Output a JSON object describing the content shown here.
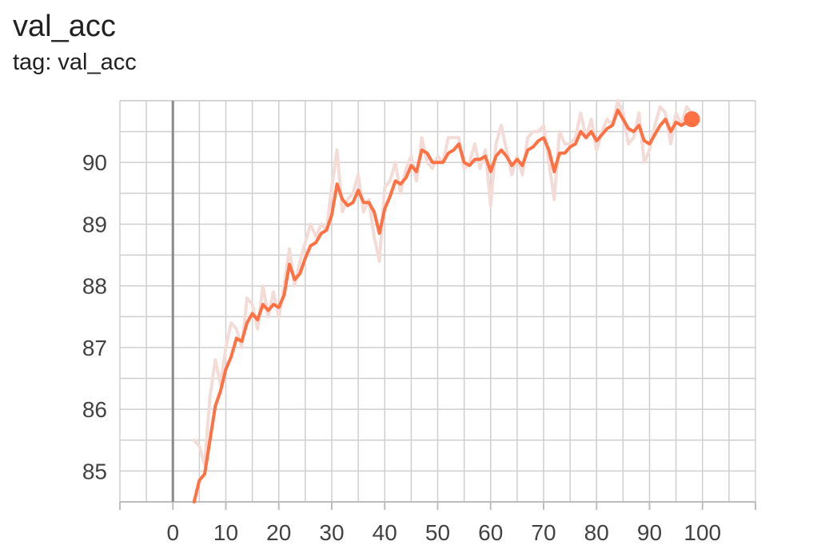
{
  "header": {
    "title": "val_acc",
    "tag": "tag: val_acc"
  },
  "chart_data": {
    "type": "line",
    "title": "val_acc",
    "subtitle": "tag: val_acc",
    "xlabel": "",
    "ylabel": "",
    "xlim": [
      -10,
      110
    ],
    "ylim": [
      84.5,
      91.0
    ],
    "x_ticks": [
      0,
      10,
      20,
      30,
      40,
      50,
      60,
      70,
      80,
      90,
      100
    ],
    "y_ticks": [
      85,
      86,
      87,
      88,
      89,
      90
    ],
    "grid": true,
    "colors": {
      "smoothed": "#ff7043",
      "raw": "#f3dcd8",
      "grid": "#cfcfcf",
      "zero_axis": "#8a8a8a"
    },
    "series": [
      {
        "role": "smoothed",
        "x": [
          4,
          5,
          6,
          7,
          8,
          9,
          10,
          11,
          12,
          13,
          14,
          15,
          16,
          17,
          18,
          19,
          20,
          21,
          22,
          23,
          24,
          25,
          26,
          27,
          28,
          29,
          30,
          31,
          32,
          33,
          34,
          35,
          36,
          37,
          38,
          39,
          40,
          41,
          42,
          43,
          44,
          45,
          46,
          47,
          48,
          49,
          50,
          51,
          52,
          53,
          54,
          55,
          56,
          57,
          58,
          59,
          60,
          61,
          62,
          63,
          64,
          65,
          66,
          67,
          68,
          69,
          70,
          71,
          72,
          73,
          74,
          75,
          76,
          77,
          78,
          79,
          80,
          81,
          82,
          83,
          84,
          85,
          86,
          87,
          88,
          89,
          90,
          91,
          92,
          93,
          94,
          95,
          96,
          97,
          98
        ],
        "y": [
          84.5,
          84.85,
          84.95,
          85.5,
          86.05,
          86.3,
          86.65,
          86.85,
          87.15,
          87.1,
          87.4,
          87.55,
          87.45,
          87.7,
          87.6,
          87.7,
          87.65,
          87.85,
          88.35,
          88.1,
          88.2,
          88.45,
          88.65,
          88.7,
          88.85,
          88.9,
          89.15,
          89.65,
          89.4,
          89.3,
          89.35,
          89.55,
          89.35,
          89.35,
          89.2,
          88.85,
          89.25,
          89.45,
          89.7,
          89.65,
          89.75,
          89.95,
          89.85,
          90.2,
          90.15,
          90.0,
          90.0,
          90.0,
          90.15,
          90.2,
          90.3,
          90.0,
          89.95,
          90.05,
          90.05,
          90.1,
          89.85,
          90.1,
          90.2,
          90.1,
          89.95,
          90.05,
          89.95,
          90.2,
          90.25,
          90.35,
          90.4,
          90.2,
          89.85,
          90.15,
          90.15,
          90.25,
          90.3,
          90.5,
          90.4,
          90.5,
          90.35,
          90.45,
          90.55,
          90.6,
          90.85,
          90.7,
          90.55,
          90.5,
          90.6,
          90.35,
          90.3,
          90.45,
          90.6,
          90.7,
          90.5,
          90.65,
          90.6,
          90.65,
          90.7
        ]
      },
      {
        "role": "raw",
        "x": [
          4,
          5,
          6,
          7,
          8,
          9,
          10,
          11,
          12,
          13,
          14,
          15,
          16,
          17,
          18,
          19,
          20,
          21,
          22,
          23,
          24,
          25,
          26,
          27,
          28,
          29,
          30,
          31,
          32,
          33,
          34,
          35,
          36,
          37,
          38,
          39,
          40,
          41,
          42,
          43,
          44,
          45,
          46,
          47,
          48,
          49,
          50,
          51,
          52,
          53,
          54,
          55,
          56,
          57,
          58,
          59,
          60,
          61,
          62,
          63,
          64,
          65,
          66,
          67,
          68,
          69,
          70,
          71,
          72,
          73,
          74,
          75,
          76,
          77,
          78,
          79,
          80,
          81,
          82,
          83,
          84,
          85,
          86,
          87,
          88,
          89,
          90,
          91,
          92,
          93,
          94,
          95,
          96,
          97,
          98
        ],
        "y": [
          85.5,
          85.4,
          85.1,
          86.2,
          86.8,
          86.4,
          87.0,
          87.4,
          87.3,
          87.0,
          87.8,
          87.7,
          87.3,
          88.0,
          87.5,
          87.9,
          87.5,
          88.0,
          88.6,
          88.0,
          88.4,
          88.7,
          89.0,
          88.8,
          89.0,
          88.9,
          89.6,
          90.2,
          89.2,
          89.4,
          89.5,
          89.8,
          89.2,
          89.4,
          88.8,
          88.4,
          89.6,
          89.7,
          90.0,
          89.5,
          89.9,
          90.1,
          89.7,
          90.4,
          90.0,
          89.9,
          90.1,
          90.0,
          90.4,
          90.4,
          90.4,
          89.9,
          90.0,
          90.3,
          89.9,
          90.2,
          89.3,
          90.3,
          90.6,
          90.2,
          89.8,
          90.1,
          89.8,
          90.4,
          90.5,
          90.5,
          90.6,
          90.0,
          89.4,
          90.5,
          90.3,
          90.3,
          90.4,
          90.8,
          90.4,
          90.7,
          90.2,
          90.5,
          90.7,
          90.6,
          91.2,
          90.8,
          90.3,
          90.4,
          90.8,
          90.0,
          90.2,
          90.6,
          90.9,
          90.8,
          90.3,
          90.8,
          90.6,
          90.9,
          90.8
        ]
      }
    ],
    "last_point": {
      "x": 98,
      "y": 90.7
    }
  }
}
